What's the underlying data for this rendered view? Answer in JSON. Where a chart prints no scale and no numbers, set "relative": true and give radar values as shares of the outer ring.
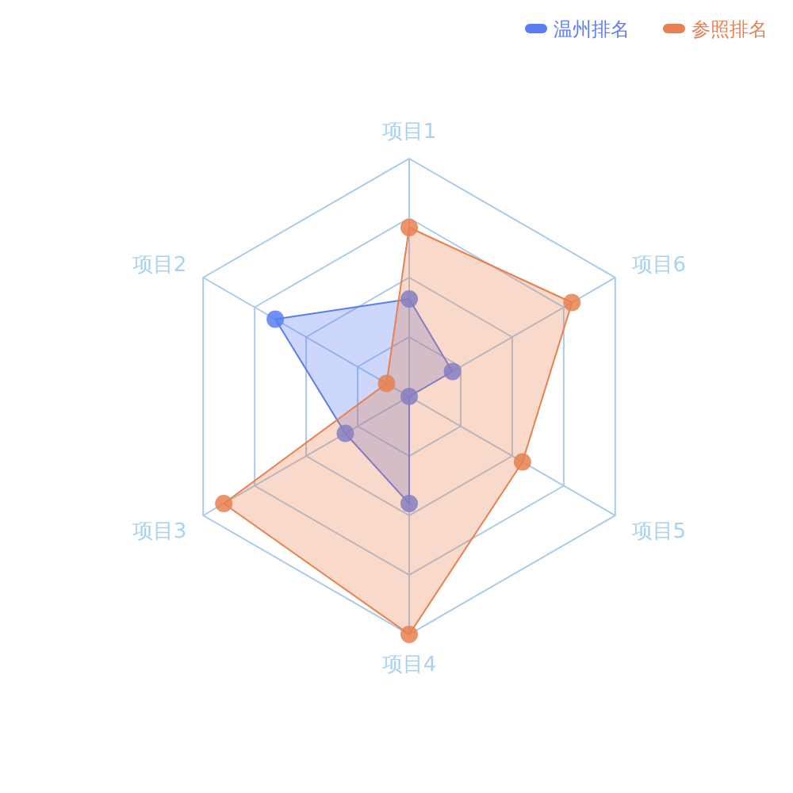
{
  "chart_data": {
    "type": "radar",
    "relative": true,
    "categories": [
      "项目1",
      "项目6",
      "项目5",
      "项目4",
      "项目3",
      "项目2"
    ],
    "series": [
      {
        "name": "温州排名",
        "color": "#5b7cf2",
        "values": [
          0.41,
          0.21,
          0,
          0.45,
          0.31,
          0.65
        ]
      },
      {
        "name": "参照排名",
        "color": "#e8804f",
        "values": [
          0.71,
          0.79,
          0.55,
          1.0,
          0.9,
          0.11
        ]
      }
    ],
    "legend": "top right",
    "marker": "circle"
  }
}
